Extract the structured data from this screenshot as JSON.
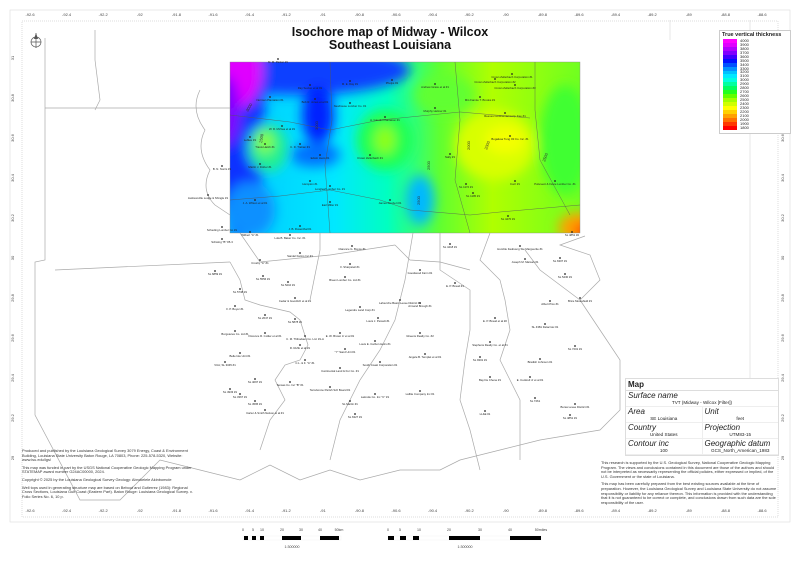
{
  "title": {
    "line1": "Isochore map of Midway - Wilcox",
    "line2": "Southeast Louisiana"
  },
  "axes": {
    "longitude_labels": [
      "-92.6",
      "-92.4",
      "-92.2",
      "-92",
      "-91.8",
      "-91.6",
      "-91.4",
      "-91.2",
      "-91",
      "-90.8",
      "-90.6",
      "-90.4",
      "-90.2",
      "-90",
      "-89.8",
      "-89.6",
      "-89.4",
      "-89.2",
      "-89",
      "-88.8",
      "-88.6"
    ],
    "latitude_labels": [
      "31",
      "30.8",
      "30.6",
      "30.4",
      "30.2",
      "30",
      "29.8",
      "29.6",
      "29.4",
      "29.2",
      "29"
    ]
  },
  "legend": {
    "title": "True vertical thickness",
    "values": [
      "4000",
      "3900",
      "3800",
      "3700",
      "3600",
      "3500",
      "3400",
      "3300",
      "3200",
      "3100",
      "3000",
      "2900",
      "2800",
      "2700",
      "2600",
      "2500",
      "2400",
      "2300",
      "2200",
      "2100",
      "2000",
      "1900",
      "1800"
    ],
    "colors": [
      "#ff00ff",
      "#e000ff",
      "#b000ff",
      "#8000ff",
      "#4000ff",
      "#0010ff",
      "#0050ff",
      "#0090ff",
      "#00c0ff",
      "#00e8ff",
      "#00ffe0",
      "#00ffa0",
      "#00ff60",
      "#20ff20",
      "#60ff00",
      "#a0ff00",
      "#d0ff00",
      "#ffff00",
      "#ffd000",
      "#ffa000",
      "#ff7000",
      "#ff3800",
      "#ff0000"
    ]
  },
  "contour_labels": [
    "3000",
    "2500",
    "3000",
    "2500",
    "2500",
    "2000",
    "2000",
    "2500"
  ],
  "wells": [
    "M. M. Parker #1",
    "Ray Sexton et al #1",
    "Norman Plantation #1",
    "M. E. Day #1",
    "Phelps #1",
    "Bob R. Jones et al #1",
    "Newhouse Lumber Co. #1",
    "A. Gaudet Plantation #1",
    "W. R. McVea et al #1",
    "Travis Hatch #1",
    "C. D. Trahan #1",
    "Crown Zellerbach #1",
    "Edwin Hens #1",
    "Martin J. Fisher #1",
    "Hampton #1",
    "Longleaf Lumber Co. #1",
    "J. A. Wilson et al #1",
    "Earl Miller #1",
    "James Roubert #1",
    "J. B. Rosenthal #1",
    "Crown Zellerbach Corporation #1",
    "Crown Zellerbach Corporation #2",
    "Crown Zellerbach Corporation #3",
    "Andrew Grace et al #1",
    "Mrs Fannie T. Brooks #1",
    "Murphy Helmer #1",
    "Reeves Continental Corp. Fee #1",
    "Bogalusa Tung Oil Co. Inc. #1",
    "Nally #1",
    "Corri #1",
    "Poitevent & Favre Lumber Co. #1",
    "SL 1172 #1",
    "SL 1195 #1",
    "SL 4470 #1",
    "Lebleu #1",
    "B. N. Norris #1",
    "Jacksonville Lodge & Shingle #1",
    "Scheding Lumber Co #1",
    "SL 4851 #2",
    "Wilbert \"A\" #1",
    "Lula B. Baker Co. Inc. #1",
    "Schwing \"B\" #5-3",
    "Clarence G. Boyce #1",
    "Sandel Farms Inc #1",
    "Crosby \"A\" #1",
    "F. Sharpsteil #1",
    "SL 6859 #1",
    "SL 5556 #1",
    "Breen Lumber Co. Ltd #1",
    "SL 5210 #1",
    "SL 5738 #1",
    "Lafourche Basin Levee District #1",
    "Cedar & Goodrich et al #1",
    "F. P. Boyer #1",
    "Legendre Land Corp #1",
    "SL 2647 #1",
    "SL 5878 #1",
    "Louis J. Perault #1",
    "Burguieres Co. Ltd #1",
    "Florence R. Collier et al #1",
    "C. M. Thibodaux Co. Ltd. #1-A",
    "E. W. Brown Jr et al #1",
    "R. Ruffo et al #1",
    "Louis E. Carbon Heirs #1",
    "\"Y\" Sand Unit #1",
    "Belle Isle Unit #1",
    "VUA; SL 3045 #1",
    "C.L. & F. \"A\" #1",
    "Continental Land & Fur Co. #1",
    "South Coast Corporation #1",
    "SL 4097 #1",
    "Tensas Co. Inc \"B\" #1",
    "SL 4933 #1",
    "Terrebonne Parish Sch Board #1",
    "SL 3367 #1",
    "SL 4595 #1",
    "Lalonde Co. Inc \"C\" #1",
    "SL Martin #1",
    "SL 6327 #1",
    "Carter & Smith Nelson et al #1",
    "Humble Faubourg Ste Marguerite #1",
    "Joseph M. Marsan #1",
    "SL 6307 #1",
    "SL 4418 #1",
    "Goodwood Farm #1",
    "SL 5430 #1",
    "E. P. Braud #1",
    "Armand Brough #1",
    "Albert Pico #1",
    "Brice Moorefield #1",
    "E. P. Braud et al #2",
    "SL 4381 Delacroix #1",
    "Gheens Realty Co. #2",
    "Stephens Realty Co. et al #1",
    "SL 7201 #1",
    "Angele B. Templet et al #1",
    "SL 9301 #1",
    "Bradish Johnson #1",
    "Bay De Chene #1",
    "E. Cockrell Jr et al #1",
    "SL 7261",
    "Lafitte Company Inc #1",
    "Buras Levee District #1",
    "LL&E #1",
    "SL 4851 #1"
  ],
  "info_box": {
    "header": "Map",
    "surface_name_label": "Surface name",
    "surface_name": "TVT (Midway - Wilcox [Filter])",
    "area_label": "Area",
    "area": "SE Louisiana",
    "unit_label": "Unit",
    "unit": "feet",
    "country_label": "Country",
    "country": "United States",
    "projection_label": "Projection",
    "projection": "UTM83-15",
    "contour_inc_label": "Contour inc",
    "contour_inc": "100",
    "datum_label": "Geographic datum",
    "datum": "GCS_North_American_1983"
  },
  "notes_left": [
    "Produced and published by the Louisiana Geological Survey 3079 Energy, Coast & Environment Building, Louisiana State University Baton Rouge, LA 70803, Phone: 225-578-5320, Website: www.lsu.edu/lgs/",
    "This map was funded in part by the USGS National Cooperative Geologic Mapping Program under STATEMAP award number G24AC00000, 2024.",
    "Copyright © 2025 by the Louisiana Geological Survey Geology: Abrokelele Akinbomole",
    "Well tops used in generating structure map are based on Bebout and Gutierrez (1983): Regional Cross Sections, Louisiana Gulf Coast (Eastern Part). Baton Rouge: Louisiana Geological Survey. v. Folio Series No. 6, 10 p."
  ],
  "notes_right": [
    "This research is supported by the U.S. Geological Survey, National Cooperative Geologic Mapping Program. The views and conclusions contained in this document are those of the authors and should not be interpreted as necessarily representing the official policies, either expressed or implied, of the U.S. Government or the state of Louisiana.",
    "This map has been carefully prepared from the best existing sources available at the time of preparation. However, the Louisiana Geological Survey and Louisiana State University do not assume responsibility or liability for any reliance thereon. This information is provided with the understanding that it is not guaranteed to be correct or complete, and conclusions drawn from such data are the sole responsibility of the user."
  ],
  "scale_km": {
    "ticks": [
      "0",
      "5",
      "10",
      "20",
      "30",
      "40",
      "50km"
    ],
    "ratio": "1:300000"
  },
  "scale_mi": {
    "ticks": [
      "0",
      "5",
      "10",
      "20",
      "30",
      "40",
      "50miles"
    ],
    "ratio": "1:300000"
  }
}
